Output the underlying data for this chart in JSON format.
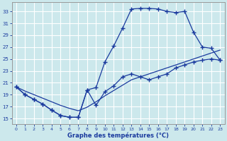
{
  "bg_color": "#cce8ec",
  "grid_color": "#b0d8dc",
  "line_color": "#1a3a9e",
  "xlim_min": -0.5,
  "xlim_max": 23.5,
  "ylim_min": 14.0,
  "ylim_max": 34.5,
  "yticks": [
    15,
    17,
    19,
    21,
    23,
    25,
    27,
    29,
    31,
    33
  ],
  "xticks": [
    0,
    1,
    2,
    3,
    4,
    5,
    6,
    7,
    8,
    9,
    10,
    11,
    12,
    13,
    14,
    15,
    16,
    17,
    18,
    19,
    20,
    21,
    22,
    23
  ],
  "xlabel": "Graphe des températures (°C)",
  "line_upper_x": [
    0,
    1,
    2,
    3,
    4,
    5,
    6,
    7,
    8,
    9,
    10,
    11,
    12,
    13,
    14,
    15,
    16,
    17,
    18,
    19,
    20,
    21,
    22,
    23
  ],
  "line_upper_y": [
    20.3,
    19.0,
    18.2,
    17.4,
    16.4,
    15.5,
    15.2,
    15.2,
    19.8,
    20.2,
    24.5,
    27.2,
    30.2,
    33.4,
    33.5,
    33.5,
    33.4,
    33.0,
    32.8,
    33.0,
    29.5,
    27.0,
    26.8,
    24.8
  ],
  "line_lower_x": [
    0,
    1,
    2,
    3,
    4,
    5,
    6,
    7,
    8,
    9,
    10,
    11,
    12,
    13,
    14,
    15,
    16,
    17,
    18,
    19,
    20,
    21,
    22,
    23
  ],
  "line_lower_y": [
    20.3,
    19.0,
    18.2,
    17.4,
    16.4,
    15.5,
    15.2,
    15.2,
    19.8,
    17.2,
    19.5,
    20.5,
    22.0,
    22.5,
    22.0,
    21.5,
    22.0,
    22.5,
    23.5,
    24.0,
    24.5,
    24.8,
    25.0,
    24.8
  ],
  "line_diag_x": [
    0,
    1,
    2,
    3,
    4,
    5,
    6,
    7,
    8,
    9,
    10,
    11,
    12,
    13,
    14,
    15,
    16,
    17,
    18,
    19,
    20,
    21,
    22,
    23
  ],
  "line_diag_y": [
    20.3,
    19.6,
    19.0,
    18.4,
    17.8,
    17.2,
    16.7,
    16.3,
    16.9,
    17.8,
    18.8,
    19.7,
    20.6,
    21.5,
    22.0,
    22.5,
    23.0,
    23.5,
    24.0,
    24.5,
    25.0,
    25.5,
    26.0,
    26.5
  ]
}
